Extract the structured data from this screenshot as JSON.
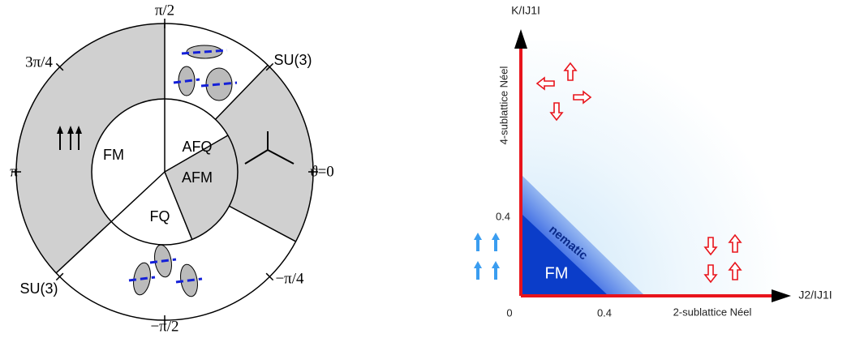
{
  "left_diagram": {
    "angle_labels": [
      "π/2",
      "3π/4",
      "π",
      "ϑ=0",
      "−π/4",
      "−π/2"
    ],
    "su3_labels": [
      "SU(3)",
      "SU(3)"
    ],
    "phase_labels": [
      "FM",
      "AFQ",
      "AFM",
      "FQ"
    ]
  },
  "right_diagram": {
    "y_axis_label": "K/IJ1I",
    "x_axis_label": "J2/IJ1I",
    "y_axis_region": "4-sublattice Néel",
    "x_axis_region": "2-sublattice Néel",
    "origin_label": "0",
    "x_tick_label": "0.4",
    "y_tick_label": "0.4",
    "nematic_label": "nematic",
    "fm_label": "FM"
  }
}
